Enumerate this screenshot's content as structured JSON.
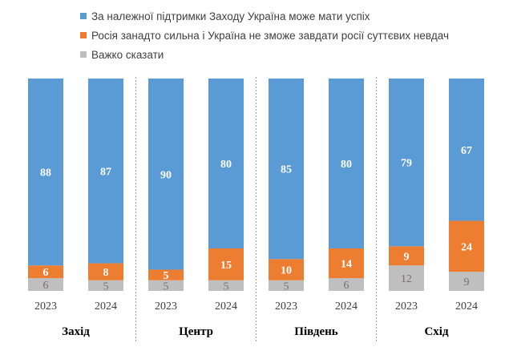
{
  "chart_data": {
    "type": "bar",
    "stacked": true,
    "legend": "top-left",
    "grid": false,
    "ylim": [
      0,
      100
    ],
    "categories": [
      "2023",
      "2024",
      "2023",
      "2024",
      "2023",
      "2024",
      "2023",
      "2024"
    ],
    "groups": [
      {
        "label": "Захід",
        "categories": [
          "2023",
          "2024"
        ]
      },
      {
        "label": "Центр",
        "categories": [
          "2023",
          "2024"
        ]
      },
      {
        "label": "Південь",
        "categories": [
          "2023",
          "2024"
        ]
      },
      {
        "label": "Схід",
        "categories": [
          "2023",
          "2024"
        ]
      }
    ],
    "series": [
      {
        "name": "Важко сказати",
        "color": "#bfbfbf",
        "values": [
          6,
          5,
          5,
          5,
          5,
          6,
          12,
          9
        ]
      },
      {
        "name": "Росія занадто сильна і Україна не зможе завдати росії суттєвих невдач",
        "color": "#ed7d31",
        "values": [
          6,
          8,
          5,
          15,
          10,
          14,
          9,
          24
        ]
      },
      {
        "name": "За належної підтримки Заходу Україна може мати успіх",
        "color": "#5b9bd5",
        "values": [
          88,
          87,
          90,
          80,
          85,
          80,
          79,
          67
        ]
      }
    ],
    "legend_order": [
      2,
      1,
      0
    ]
  }
}
